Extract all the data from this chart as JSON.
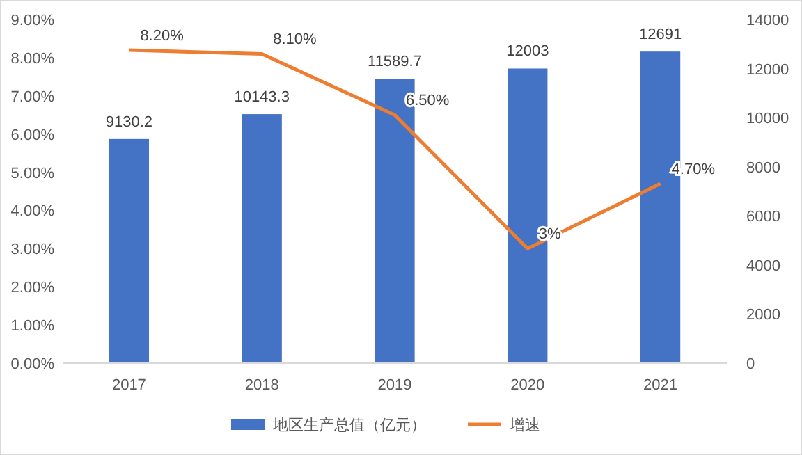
{
  "chart_data": {
    "type": "bar",
    "categories": [
      "2017",
      "2018",
      "2019",
      "2020",
      "2021"
    ],
    "series": [
      {
        "name": "地区生产总值（亿元）",
        "axis": "y2",
        "color": "#4472c4",
        "values": [
          9130.2,
          10143.3,
          11589.7,
          12003,
          12691
        ],
        "value_labels": [
          "9130.2",
          "10143.3",
          "11589.7",
          "12003",
          "12691"
        ]
      },
      {
        "name": "增速",
        "type": "line",
        "axis": "y",
        "color": "#ed7d31",
        "values": [
          8.2,
          8.1,
          6.5,
          3,
          4.7
        ],
        "value_labels": [
          "8.20%",
          "8.10%",
          "6.50%",
          "3%",
          "4.70%"
        ]
      }
    ],
    "ylim": [
      0,
      9
    ],
    "yticks": [
      {
        "value": 0,
        "label": "0.00%"
      },
      {
        "value": 1,
        "label": "1.00%"
      },
      {
        "value": 2,
        "label": "2.00%"
      },
      {
        "value": 3,
        "label": "3.00%"
      },
      {
        "value": 4,
        "label": "4.00%"
      },
      {
        "value": 5,
        "label": "5.00%"
      },
      {
        "value": 6,
        "label": "6.00%"
      },
      {
        "value": 7,
        "label": "7.00%"
      },
      {
        "value": 8,
        "label": "8.00%"
      },
      {
        "value": 9,
        "label": "9.00%"
      }
    ],
    "y2lim": [
      0,
      14000
    ],
    "y2ticks": [
      0,
      2000,
      4000,
      6000,
      8000,
      10000,
      12000,
      14000
    ],
    "legend": "bottom",
    "marker": "none",
    "line_style": "solid"
  }
}
